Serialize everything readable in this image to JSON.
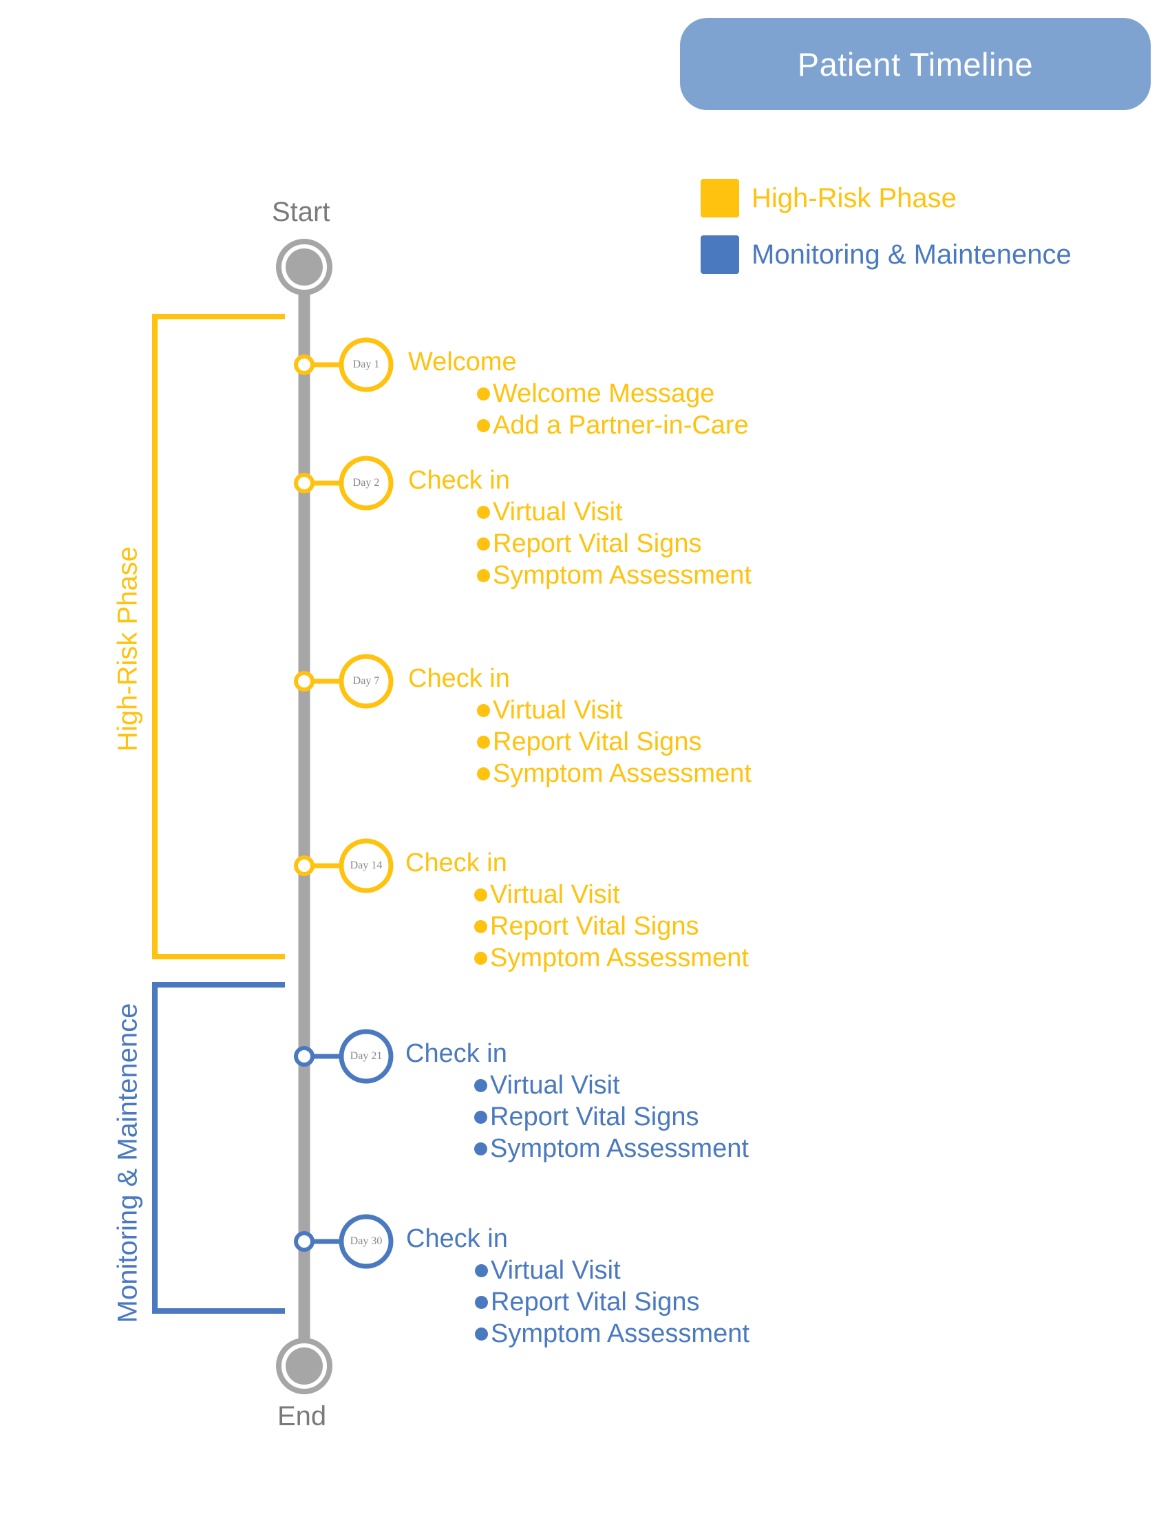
{
  "title": "Patient Timeline",
  "colors": {
    "high_risk": "#ffc20e",
    "monitoring": "#4a79c0",
    "axis": "#a6a6a6",
    "title_box": "#7fa3d1"
  },
  "legend": [
    {
      "label": "High-Risk Phase",
      "phase": "high_risk"
    },
    {
      "label": "Monitoring & Maintenence",
      "phase": "monitoring"
    }
  ],
  "timeline": {
    "start_label": "Start",
    "end_label": "End"
  },
  "phases": [
    {
      "key": "high_risk",
      "label": "High-Risk Phase"
    },
    {
      "key": "monitoring",
      "label": "Monitoring & Maintenence"
    }
  ],
  "events": [
    {
      "day": "Day 1",
      "phase": "high_risk",
      "title": "Welcome",
      "items": [
        "Welcome Message",
        "Add a Partner-in-Care"
      ]
    },
    {
      "day": "Day 2",
      "phase": "high_risk",
      "title": "Check in",
      "items": [
        "Virtual Visit",
        "Report Vital Signs",
        "Symptom Assessment"
      ]
    },
    {
      "day": "Day 7",
      "phase": "high_risk",
      "title": "Check in",
      "items": [
        "Virtual Visit",
        "Report Vital Signs",
        "Symptom Assessment"
      ]
    },
    {
      "day": "Day 14",
      "phase": "high_risk",
      "title": "Check in",
      "items": [
        "Virtual Visit",
        "Report Vital Signs",
        "Symptom Assessment"
      ]
    },
    {
      "day": "Day 21",
      "phase": "monitoring",
      "title": "Check in",
      "items": [
        "Virtual Visit",
        "Report Vital Signs",
        "Symptom Assessment"
      ]
    },
    {
      "day": "Day 30",
      "phase": "monitoring",
      "title": "Check in",
      "items": [
        "Virtual Visit",
        "Report Vital Signs",
        "Symptom Assessment"
      ]
    }
  ]
}
